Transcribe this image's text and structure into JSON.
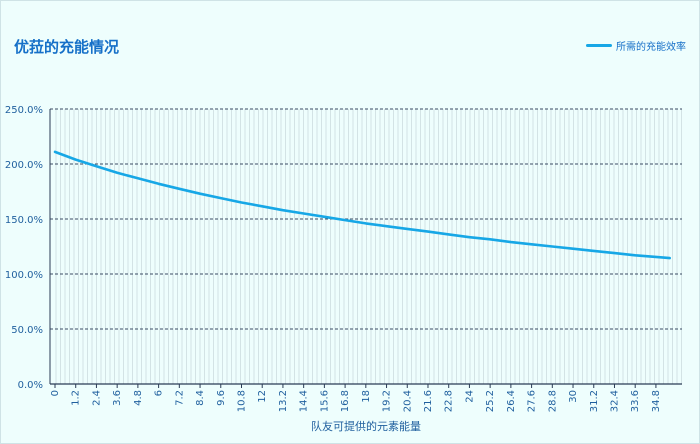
{
  "title": "优菈的充能情况",
  "chart_data": {
    "type": "line",
    "title": "优菈的充能情况",
    "xlabel": "队友可提供的元素能量",
    "ylabel": "",
    "legend_position": "top-right",
    "series": [
      {
        "name": "所需的充能效率",
        "color": "#17a7e6",
        "x": [
          0,
          1.2,
          2.4,
          3.6,
          4.8,
          6,
          7.2,
          8.4,
          9.6,
          10.8,
          12,
          13.2,
          14.4,
          15.6,
          16.8,
          18,
          19.2,
          20.4,
          21.6,
          22.8,
          24,
          25.2,
          26.4,
          27.6,
          28.8,
          30,
          31.2,
          32.4,
          33.6,
          34.8,
          35.6
        ],
        "y": [
          211,
          204,
          198,
          192,
          187,
          182,
          177.5,
          173,
          169,
          165,
          161.5,
          158,
          155,
          152,
          149,
          146,
          143.5,
          141,
          138.5,
          136,
          133.5,
          131.5,
          129,
          127,
          125,
          123,
          121,
          119,
          117,
          115.5,
          114.5
        ]
      }
    ],
    "x_ticks": [
      "0",
      "1.2",
      "2.4",
      "3.6",
      "4.8",
      "6",
      "7.2",
      "8.4",
      "9.6",
      "10.8",
      "12",
      "13.2",
      "14.4",
      "15.6",
      "16.8",
      "18",
      "19.2",
      "20.4",
      "21.6",
      "22.8",
      "24",
      "25.2",
      "26.4",
      "27.6",
      "28.8",
      "30",
      "31.2",
      "32.4",
      "33.6",
      "34.8"
    ],
    "y_ticks": [
      "0.0%",
      "50.0%",
      "100.0%",
      "150.0%",
      "200.0%",
      "250.0%"
    ],
    "ylim": [
      0,
      250
    ],
    "y_unit": "%",
    "grid": true
  }
}
